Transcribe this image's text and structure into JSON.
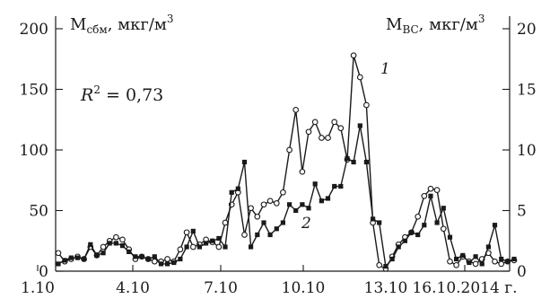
{
  "chart_data": {
    "type": "line",
    "left_axis": {
      "label_main": "M",
      "label_sub": "сбм",
      "label_rest": ", мкг/м",
      "label_sup": "3",
      "ylim": [
        0,
        200
      ],
      "ticks": [
        "0",
        "50",
        "100",
        "150",
        "200"
      ]
    },
    "right_axis": {
      "label_main": "M",
      "label_sub": "BC",
      "label_rest": ", мкг/м",
      "label_sup": "3",
      "ylim": [
        0,
        20
      ],
      "ticks": [
        "0",
        "5",
        "10",
        "15",
        "20"
      ]
    },
    "x_ticks": [
      "1.10",
      "4.10",
      "7.10",
      "10.10",
      "13.10",
      "16.10.2014 г."
    ],
    "x_range": [
      0,
      60
    ],
    "annotation": {
      "r_letter": "R",
      "r_sup": "2",
      "r_rest": " = 0,73"
    },
    "series": [
      {
        "label": "1",
        "axis": "left",
        "marker": "open-circle",
        "values": [
          15,
          8,
          10,
          12,
          10,
          20,
          13,
          20,
          25,
          28,
          26,
          18,
          10,
          12,
          10,
          8,
          8,
          10,
          8,
          18,
          32,
          20,
          22,
          26,
          24,
          20,
          40,
          55,
          65,
          30,
          52,
          45,
          55,
          58,
          56,
          65,
          100,
          133,
          82,
          115,
          123,
          110,
          110,
          123,
          118,
          92,
          178,
          160,
          137,
          40,
          5,
          2,
          12,
          22,
          28,
          32,
          45,
          62,
          68,
          67,
          35,
          8,
          5,
          12,
          8,
          6,
          10,
          15,
          8,
          6,
          8,
          9
        ]
      },
      {
        "label": "2",
        "axis": "right",
        "marker": "filled-square",
        "values": [
          0.6,
          0.9,
          1.1,
          1.1,
          1.0,
          2.2,
          1.3,
          1.5,
          2.3,
          2.3,
          2.1,
          1.6,
          1.2,
          1.2,
          1.0,
          1.2,
          0.6,
          0.6,
          0.7,
          1.0,
          2.0,
          3.3,
          2.0,
          2.3,
          2.5,
          2.7,
          2.0,
          6.5,
          6.8,
          9.0,
          2.0,
          3.0,
          4.0,
          3.0,
          3.5,
          4.0,
          5.5,
          5.0,
          5.5,
          5.2,
          7.2,
          5.8,
          6.0,
          7.0,
          7.0,
          9.3,
          9.0,
          12.0,
          9.0,
          4.3,
          4.0,
          0.4,
          1.0,
          2.0,
          2.5,
          3.2,
          3.0,
          3.8,
          6.2,
          4.0,
          5.2,
          2.8,
          1.0,
          1.3,
          0.7,
          1.2,
          0.6,
          2.0,
          3.8,
          1.0,
          0.8,
          1.0
        ]
      }
    ]
  }
}
